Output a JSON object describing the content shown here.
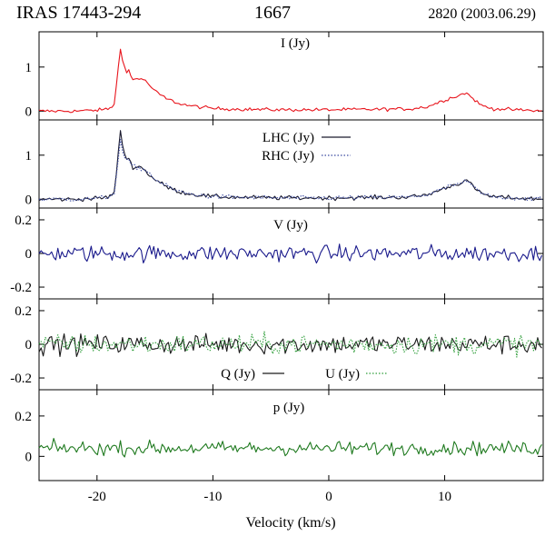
{
  "header": {
    "source": "IRAS 17443-294",
    "frequency": "1667",
    "epoch": "2820 (2003.06.29)"
  },
  "chart_data": [
    {
      "type": "line",
      "panel": "I",
      "label": "I (Jy)",
      "xlim": [
        -25,
        18.5
      ],
      "ylim": [
        -0.2,
        1.8
      ],
      "yticks": [
        0,
        1
      ],
      "ytick_labels": [
        "0",
        "1"
      ],
      "series": [
        {
          "name": "I (Jy)",
          "color": "#e8141c",
          "style": "solid",
          "x": [
            -25,
            -22,
            -20,
            -19,
            -18.5,
            -18.2,
            -18.0,
            -17.8,
            -17.5,
            -17.2,
            -17.0,
            -16.5,
            -16.0,
            -15.5,
            -15.0,
            -14.0,
            -13.0,
            -12.0,
            -10.0,
            -7.0,
            -4.0,
            0.0,
            4.0,
            7.0,
            8.5,
            9.5,
            10.5,
            11.2,
            11.8,
            12.5,
            13.0,
            14.0,
            16.0,
            18.5
          ],
          "y": [
            0.0,
            0.0,
            0.02,
            0.05,
            0.15,
            0.9,
            1.45,
            1.2,
            0.85,
            0.95,
            0.7,
            0.75,
            0.72,
            0.6,
            0.45,
            0.28,
            0.18,
            0.12,
            0.06,
            0.04,
            0.03,
            0.03,
            0.04,
            0.05,
            0.1,
            0.2,
            0.3,
            0.35,
            0.42,
            0.28,
            0.15,
            0.06,
            0.03,
            0.0
          ],
          "noise": 0.04
        }
      ]
    },
    {
      "type": "line",
      "panel": "LHC-RHC",
      "xlim": [
        -25,
        18.5
      ],
      "ylim": [
        -0.2,
        1.8
      ],
      "yticks": [
        0,
        1
      ],
      "ytick_labels": [
        "0",
        "1"
      ],
      "series": [
        {
          "name": "LHC (Jy)",
          "color": "#1a1a2e",
          "style": "solid",
          "x": [
            -25,
            -22,
            -20,
            -19,
            -18.5,
            -18.2,
            -18.0,
            -17.8,
            -17.5,
            -17.2,
            -17.0,
            -16.5,
            -16.0,
            -15.5,
            -15.0,
            -14.0,
            -13.0,
            -12.0,
            -10.0,
            -7.0,
            -4.0,
            0.0,
            4.0,
            7.0,
            8.5,
            9.5,
            10.5,
            11.2,
            11.8,
            12.5,
            13.0,
            14.0,
            16.0,
            18.5
          ],
          "y": [
            0.0,
            0.0,
            0.02,
            0.05,
            0.15,
            0.95,
            1.55,
            1.25,
            0.9,
            0.95,
            0.72,
            0.75,
            0.7,
            0.55,
            0.45,
            0.28,
            0.18,
            0.12,
            0.06,
            0.04,
            0.03,
            0.03,
            0.04,
            0.05,
            0.1,
            0.2,
            0.3,
            0.35,
            0.45,
            0.28,
            0.15,
            0.06,
            0.03,
            0.0
          ],
          "noise": 0.05
        },
        {
          "name": "RHC (Jy)",
          "color": "#3a4aa0",
          "style": "dotted",
          "x": [
            -25,
            -22,
            -20,
            -19,
            -18.5,
            -18.2,
            -18.0,
            -17.8,
            -17.5,
            -17.2,
            -17.0,
            -16.5,
            -16.0,
            -15.5,
            -15.0,
            -14.0,
            -13.0,
            -12.0,
            -10.0,
            -7.0,
            -4.0,
            0.0,
            4.0,
            7.0,
            8.5,
            9.5,
            10.5,
            11.2,
            11.8,
            12.5,
            13.0,
            14.0,
            16.0,
            18.5
          ],
          "y": [
            0.0,
            0.0,
            0.02,
            0.05,
            0.15,
            0.85,
            1.35,
            1.1,
            0.85,
            0.9,
            0.75,
            0.72,
            0.68,
            0.6,
            0.45,
            0.3,
            0.18,
            0.12,
            0.06,
            0.04,
            0.03,
            0.03,
            0.04,
            0.05,
            0.1,
            0.2,
            0.3,
            0.35,
            0.4,
            0.3,
            0.15,
            0.06,
            0.03,
            0.0
          ],
          "noise": 0.05
        }
      ]
    },
    {
      "type": "line",
      "panel": "V",
      "label": "V (Jy)",
      "xlim": [
        -25,
        18.5
      ],
      "ylim": [
        -0.27,
        0.27
      ],
      "yticks": [
        0.2,
        0,
        -0.2
      ],
      "ytick_labels": [
        "0.2",
        "0",
        "-0.2"
      ],
      "series": [
        {
          "name": "V (Jy)",
          "color": "#1a1a8c",
          "style": "solid",
          "x": [
            -25,
            18.5
          ],
          "y": [
            0,
            0
          ],
          "noise": 0.05
        }
      ]
    },
    {
      "type": "line",
      "panel": "Q-U",
      "xlim": [
        -25,
        18.5
      ],
      "ylim": [
        -0.27,
        0.27
      ],
      "yticks": [
        0.2,
        0,
        -0.2
      ],
      "ytick_labels": [
        "0.2",
        "0",
        "-0.2"
      ],
      "series": [
        {
          "name": "Q (Jy)",
          "color": "#1a1a1a",
          "style": "solid",
          "x": [
            -25,
            18.5
          ],
          "y": [
            0,
            0
          ],
          "noise": 0.06
        },
        {
          "name": "U (Jy)",
          "color": "#2f9e3a",
          "style": "dotted",
          "x": [
            -25,
            18.5
          ],
          "y": [
            0,
            0
          ],
          "noise": 0.06
        }
      ]
    },
    {
      "type": "line",
      "panel": "p",
      "label": "p (Jy)",
      "xlim": [
        -25,
        18.5
      ],
      "ylim": [
        -0.12,
        0.33
      ],
      "yticks": [
        0.2,
        0
      ],
      "ytick_labels": [
        "0.2",
        "0"
      ],
      "xticks": [
        -20,
        -10,
        0,
        10
      ],
      "xtick_labels": [
        "-20",
        "-10",
        "0",
        "10"
      ],
      "xlabel": "Velocity (km/s)",
      "series": [
        {
          "name": "p (Jy)",
          "color": "#1f7a1f",
          "style": "solid",
          "x": [
            -25,
            18.5
          ],
          "y": [
            0.04,
            0.04
          ],
          "noise": 0.035
        }
      ]
    }
  ]
}
